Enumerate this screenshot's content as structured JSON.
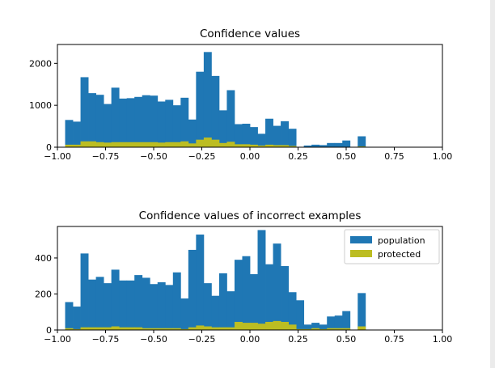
{
  "chart_data": [
    {
      "type": "bar",
      "title": "Confidence values",
      "xlim": [
        -1.0,
        1.0
      ],
      "ylim": [
        0,
        2450
      ],
      "x_ticks": [
        -1.0,
        -0.75,
        -0.5,
        -0.25,
        0.0,
        0.25,
        0.5,
        0.75,
        1.0
      ],
      "x_tick_labels": [
        "−1.00",
        "−0.75",
        "−0.50",
        "−0.25",
        "0.00",
        "0.25",
        "0.50",
        "0.75",
        "1.00"
      ],
      "y_ticks": [
        0,
        1000,
        2000
      ],
      "y_tick_labels": [
        "0",
        "1000",
        "2000"
      ],
      "grid": false,
      "bin_start": -0.96,
      "bin_width": 0.04,
      "series": [
        {
          "name": "population",
          "color": "#1f77b4",
          "values": [
            650,
            610,
            1670,
            1290,
            1250,
            1030,
            1420,
            1160,
            1170,
            1200,
            1240,
            1230,
            1090,
            1130,
            1000,
            1180,
            660,
            1800,
            2270,
            1700,
            880,
            1360,
            550,
            560,
            480,
            320,
            680,
            510,
            620,
            440,
            0,
            40,
            60,
            50,
            100,
            100,
            160,
            0,
            260
          ]
        },
        {
          "name": "protected",
          "color": "#bcbd22",
          "values": [
            60,
            60,
            140,
            140,
            120,
            110,
            120,
            120,
            120,
            120,
            120,
            120,
            110,
            120,
            120,
            140,
            90,
            180,
            230,
            180,
            100,
            130,
            70,
            70,
            60,
            40,
            60,
            50,
            50,
            30,
            0,
            10,
            10,
            10,
            10,
            10,
            10,
            0,
            20
          ]
        }
      ]
    },
    {
      "type": "bar",
      "title": "Confidence values of incorrect examples",
      "xlim": [
        -1.0,
        1.0
      ],
      "ylim": [
        0,
        575
      ],
      "x_ticks": [
        -1.0,
        -0.75,
        -0.5,
        -0.25,
        0.0,
        0.25,
        0.5,
        0.75,
        1.0
      ],
      "x_tick_labels": [
        "−1.00",
        "−0.75",
        "−0.50",
        "−0.25",
        "0.00",
        "0.25",
        "0.50",
        "0.75",
        "1.00"
      ],
      "y_ticks": [
        0,
        200,
        400
      ],
      "y_tick_labels": [
        "0",
        "200",
        "400"
      ],
      "grid": false,
      "legend": {
        "position": "top-right",
        "entries": [
          "population",
          "protected"
        ]
      },
      "bin_start": -0.96,
      "bin_width": 0.04,
      "series": [
        {
          "name": "population",
          "color": "#1f77b4",
          "values": [
            155,
            130,
            425,
            280,
            295,
            260,
            335,
            275,
            275,
            305,
            290,
            255,
            265,
            250,
            320,
            175,
            445,
            530,
            260,
            190,
            315,
            215,
            390,
            410,
            310,
            555,
            365,
            480,
            355,
            210,
            165,
            30,
            40,
            30,
            75,
            80,
            105,
            0,
            205
          ]
        },
        {
          "name": "protected",
          "color": "#bcbd22",
          "values": [
            10,
            5,
            15,
            15,
            15,
            15,
            20,
            15,
            15,
            15,
            10,
            10,
            10,
            10,
            10,
            5,
            15,
            25,
            20,
            15,
            15,
            15,
            45,
            40,
            40,
            35,
            45,
            50,
            45,
            30,
            5,
            5,
            10,
            5,
            10,
            10,
            10,
            0,
            20
          ]
        }
      ]
    }
  ]
}
